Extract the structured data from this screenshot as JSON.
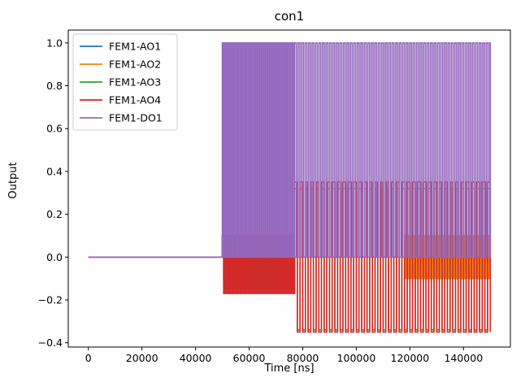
{
  "chart_data": {
    "type": "line",
    "title": "con1",
    "xlabel": "Time [ns]",
    "ylabel": "Output",
    "xlim": [
      -7500,
      157500
    ],
    "ylim": [
      -0.42,
      1.06
    ],
    "xticks": [
      0,
      20000,
      40000,
      60000,
      80000,
      100000,
      120000,
      140000
    ],
    "xtick_labels": [
      "0",
      "20000",
      "40000",
      "60000",
      "80000",
      "100000",
      "120000",
      "140000"
    ],
    "yticks": [
      -0.4,
      -0.2,
      0.0,
      0.2,
      0.4,
      0.6,
      0.8,
      1.0
    ],
    "ytick_labels": [
      "−0.4",
      "−0.2",
      "0.0",
      "0.2",
      "0.4",
      "0.6",
      "0.8",
      "1.0"
    ],
    "grid": false,
    "legend_position": "top-left",
    "series": [
      {
        "name": "FEM1-AO1",
        "color": "#1f77b4",
        "segments": [
          {
            "x0": 0,
            "x1": 50000,
            "type": "flat",
            "value": 0
          },
          {
            "x0": 50000,
            "x1": 77000,
            "type": "pulse",
            "period": 1000,
            "high": 0.1,
            "low": -0.1
          },
          {
            "x0": 77000,
            "x1": 118000,
            "type": "flat",
            "value": 0
          },
          {
            "x0": 118000,
            "x1": 150000,
            "type": "pulse",
            "period": 1000,
            "high": 0.1,
            "low": -0.1
          }
        ]
      },
      {
        "name": "FEM1-AO2",
        "color": "#ff7f0e",
        "segments": [
          {
            "x0": 0,
            "x1": 50000,
            "type": "flat",
            "value": 0
          },
          {
            "x0": 50000,
            "x1": 77000,
            "type": "pulse",
            "period": 1000,
            "high": 0.1,
            "low": -0.1
          },
          {
            "x0": 77000,
            "x1": 118000,
            "type": "flat",
            "value": 0
          },
          {
            "x0": 118000,
            "x1": 150000,
            "type": "pulse",
            "period": 1000,
            "high": 0.1,
            "low": -0.1
          }
        ]
      },
      {
        "name": "FEM1-AO3",
        "color": "#2ca02c",
        "segments": [
          {
            "x0": 0,
            "x1": 50000,
            "type": "flat",
            "value": 0
          },
          {
            "x0": 50000,
            "x1": 77000,
            "type": "pulse",
            "period": 1000,
            "high": 0.1,
            "low": -0.15
          },
          {
            "x0": 77000,
            "x1": 150000,
            "type": "pulse",
            "period": 2000,
            "high": 0.32,
            "low": -0.34
          }
        ]
      },
      {
        "name": "FEM1-AO4",
        "color": "#d62728",
        "segments": [
          {
            "x0": 0,
            "x1": 50000,
            "type": "flat",
            "value": 0
          },
          {
            "x0": 50000,
            "x1": 77000,
            "type": "pulse",
            "period": 1000,
            "high": 0.1,
            "low": -0.17
          },
          {
            "x0": 77000,
            "x1": 150000,
            "type": "pulse",
            "period": 2000,
            "high": 0.35,
            "low": -0.35
          }
        ]
      },
      {
        "name": "FEM1-DO1",
        "color": "#9467bd",
        "segments": [
          {
            "x0": 0,
            "x1": 50000,
            "type": "flat",
            "value": 0
          },
          {
            "x0": 50000,
            "x1": 77000,
            "type": "pulse",
            "period": 1000,
            "high": 1.0,
            "low": 0
          },
          {
            "x0": 77000,
            "x1": 150000,
            "type": "pulse",
            "period": 1300,
            "high": 1.0,
            "low": 0
          }
        ]
      }
    ]
  }
}
